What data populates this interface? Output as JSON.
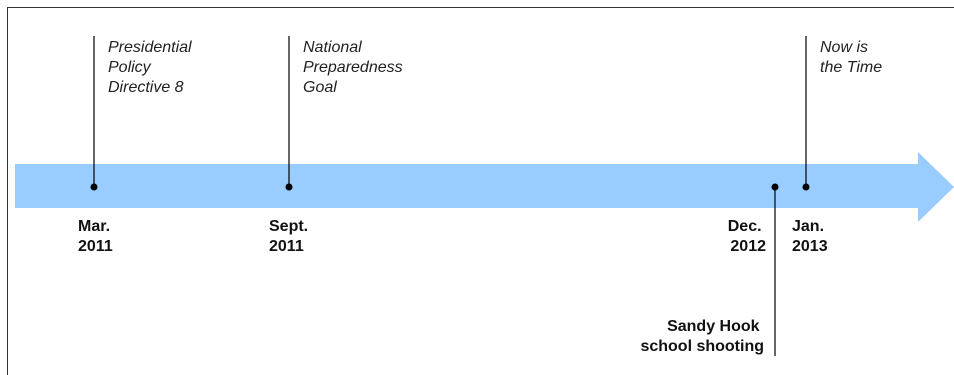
{
  "colors": {
    "arrow": "#99ccff",
    "frame": "#333333",
    "line": "#000000"
  },
  "events": [
    {
      "date_line1": "Mar.",
      "date_line2": "2011",
      "label": [
        "Presidential",
        "Policy",
        "Directive 8"
      ]
    },
    {
      "date_line1": "Sept.",
      "date_line2": "2011",
      "label": [
        "National",
        "Preparedness",
        "Goal"
      ]
    },
    {
      "date_line1": "Dec.",
      "date_line2": "2012",
      "label": [
        "Sandy Hook",
        "school shooting"
      ]
    },
    {
      "date_line1": "Jan.",
      "date_line2": "2013",
      "label": [
        "Now is",
        "the Time"
      ]
    }
  ]
}
